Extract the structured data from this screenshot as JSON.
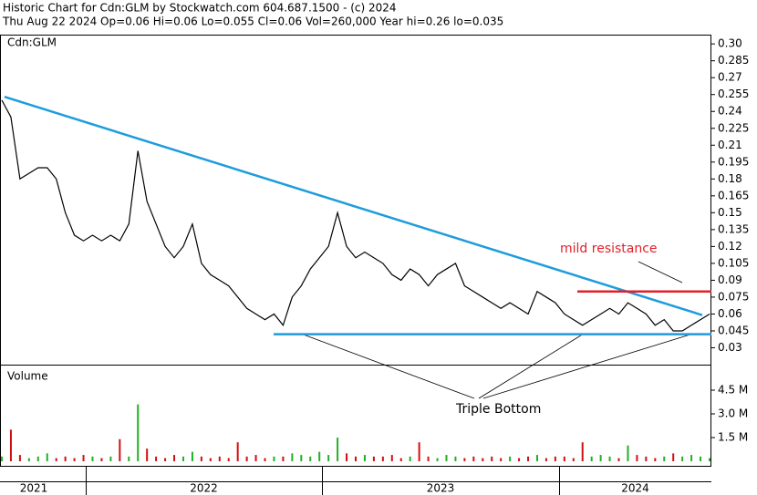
{
  "chart_data": [
    {
      "type": "line",
      "title": "Historic Chart for Cdn:GLM by Stockwatch.com 604.687.1500 - (c) 2024",
      "subtitle": "Thu Aug 22 2024  Op=0.06  Hi=0.06  Lo=0.055  Cl=0.06  Vol=260,000  Year hi=0.26  lo=0.035",
      "label": "Cdn:GLM",
      "series": [
        {
          "name": "Cdn:GLM",
          "color": "#000000",
          "values": [
            0.25,
            0.235,
            0.18,
            0.185,
            0.19,
            0.19,
            0.18,
            0.15,
            0.13,
            0.125,
            0.13,
            0.125,
            0.13,
            0.125,
            0.14,
            0.205,
            0.16,
            0.14,
            0.12,
            0.11,
            0.12,
            0.14,
            0.105,
            0.095,
            0.09,
            0.085,
            0.075,
            0.065,
            0.06,
            0.055,
            0.06,
            0.05,
            0.075,
            0.085,
            0.1,
            0.11,
            0.12,
            0.15,
            0.12,
            0.11,
            0.115,
            0.11,
            0.105,
            0.095,
            0.09,
            0.1,
            0.095,
            0.085,
            0.095,
            0.1,
            0.105,
            0.085,
            0.08,
            0.075,
            0.07,
            0.065,
            0.07,
            0.065,
            0.06,
            0.08,
            0.075,
            0.07,
            0.06,
            0.055,
            0.05,
            0.055,
            0.06,
            0.065,
            0.06,
            0.07,
            0.065,
            0.06,
            0.05,
            0.055,
            0.045,
            0.045,
            0.05,
            0.055,
            0.06
          ]
        }
      ],
      "trendlines": [
        {
          "color": "#1e9cdc",
          "values": [
            0.253,
            0.059
          ]
        },
        {
          "color": "#1e9cdc",
          "values": [
            0.042,
            0.042
          ]
        },
        {
          "color": "#e0202a",
          "values": [
            0.08,
            0.08
          ]
        }
      ],
      "annotations": [
        "mild resistance",
        "Triple Bottom"
      ],
      "ylim": [
        0.015,
        0.305
      ],
      "yticks": [
        {
          "value": 0.3,
          "label": "0.30"
        },
        0.285,
        0.27,
        0.255,
        0.24,
        0.225,
        0.21,
        0.195,
        0.18,
        0.165,
        0.15,
        0.135,
        0.12,
        0.105,
        0.09,
        0.075,
        0.06,
        0.045,
        0.03
      ],
      "x_labels": [
        "2021",
        "2022",
        "2023",
        "2024"
      ]
    },
    {
      "type": "bar",
      "label": "Volume",
      "up_color": "#20b020",
      "down_color": "#d01010",
      "values": [
        0.3,
        2.0,
        0.4,
        0.2,
        0.3,
        0.5,
        0.2,
        0.3,
        0.2,
        0.4,
        0.3,
        0.2,
        0.3,
        1.4,
        0.3,
        3.6,
        0.8,
        0.3,
        0.2,
        0.4,
        0.3,
        0.6,
        0.3,
        0.2,
        0.3,
        0.2,
        1.2,
        0.3,
        0.4,
        0.2,
        0.3,
        0.3,
        0.5,
        0.4,
        0.3,
        0.6,
        0.4,
        1.5,
        0.5,
        0.3,
        0.4,
        0.3,
        0.3,
        0.4,
        0.2,
        0.3,
        1.2,
        0.3,
        0.2,
        0.4,
        0.3,
        0.2,
        0.3,
        0.2,
        0.3,
        0.2,
        0.3,
        0.2,
        0.3,
        0.4,
        0.2,
        0.3,
        0.3,
        0.2,
        1.2,
        0.3,
        0.4,
        0.3,
        0.2,
        1.0,
        0.4,
        0.3,
        0.2,
        0.3,
        0.5,
        0.3,
        0.4,
        0.3,
        0.2
      ],
      "ylim": [
        0,
        6
      ],
      "yticks": [
        {
          "value": 4.5,
          "label": "4.5 M"
        },
        {
          "value": 3,
          "label": "3.0 M"
        },
        {
          "value": 1.5,
          "label": "1.5 M"
        }
      ]
    }
  ]
}
